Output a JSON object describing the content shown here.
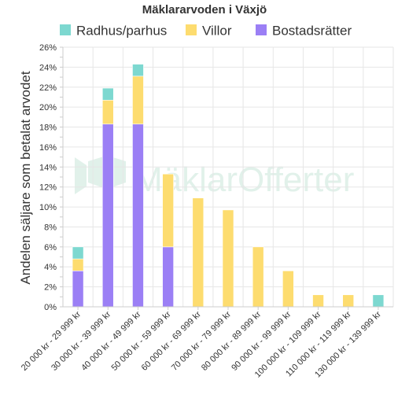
{
  "chart_data": {
    "type": "bar",
    "stacked": true,
    "title": "Mäklararvoden i Växjö",
    "ylabel": "Andelen säljare som betalat arvodet",
    "xlabel": "",
    "ylim": [
      0,
      26
    ],
    "ytick_step": 2,
    "y_unit": "%",
    "grid": true,
    "legend_position": "top",
    "categories": [
      "20 000 kr - 29 999 kr",
      "30 000 kr - 39 999 kr",
      "40 000 kr - 49 999 kr",
      "50 000 kr - 59 999 kr",
      "60 000 kr - 69 999 kr",
      "70 000 kr - 79 999 kr",
      "80 000 kr - 89 999 kr",
      "90 000 kr - 99 999 kr",
      "100 000 kr - 109 999 kr",
      "110 000 kr - 119 999 kr",
      "130 000 kr - 139 999 kr"
    ],
    "series": [
      {
        "name": "Bostadsrätter",
        "color": "#9b7ff5",
        "values": [
          3.6,
          18.3,
          18.3,
          6.0,
          0,
          0,
          0,
          0,
          0,
          0,
          0
        ]
      },
      {
        "name": "Villor",
        "color": "#fddc6f",
        "values": [
          1.2,
          2.4,
          4.8,
          7.3,
          10.9,
          9.7,
          6.0,
          3.6,
          1.2,
          1.2,
          0
        ]
      },
      {
        "name": "Radhus/parhus",
        "color": "#7dd8d0",
        "values": [
          1.2,
          1.2,
          1.2,
          0,
          0,
          0,
          0,
          0,
          0,
          0,
          1.2
        ]
      }
    ],
    "legend_order": [
      "Radhus/parhus",
      "Villor",
      "Bostadsrätter"
    ]
  },
  "watermark": {
    "text": "MäklarOfferter"
  },
  "colors": {
    "grid": "#e6e6e6",
    "axis": "#cccccc",
    "watermark": "#d7ede3"
  }
}
